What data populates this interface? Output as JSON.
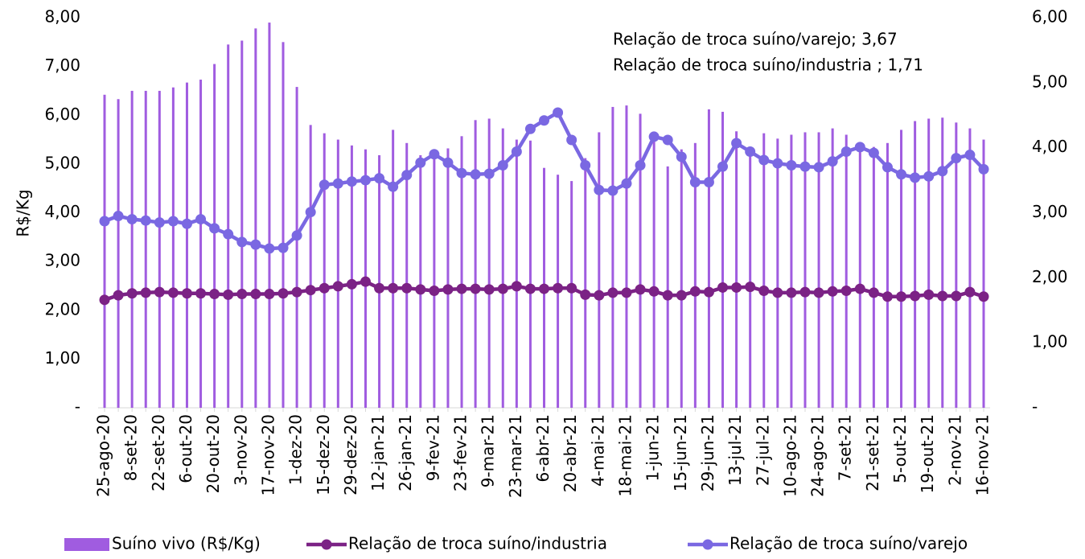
{
  "chart_data": {
    "type": "bar-line",
    "y_label": "R$/Kg",
    "annotations": [
      "Relação de troca suíno/varejo; 3,67",
      "Relação de troca suíno/industria ; 1,71"
    ],
    "categories": [
      "25-ago-20",
      null,
      "8-set-20",
      null,
      "22-set-20",
      null,
      "6-out-20",
      null,
      "20-out-20",
      null,
      "3-nov-20",
      null,
      "17-nov-20",
      null,
      "1-dez-20",
      null,
      "15-dez-20",
      null,
      "29-dez-20",
      null,
      "12-jan-21",
      null,
      "26-jan-21",
      null,
      "9-fev-21",
      null,
      "23-fev-21",
      null,
      "9-mar-21",
      null,
      "23-mar-21",
      null,
      "6-abr-21",
      null,
      "20-abr-21",
      null,
      "4-mai-21",
      null,
      "18-mai-21",
      null,
      "1-jun-21",
      null,
      "15-jun-21",
      null,
      "29-jun-21",
      null,
      "13-jul-21",
      null,
      "27-jul-21",
      null,
      "10-ago-21",
      null,
      "24-ago-21",
      null,
      "7-set-21",
      null,
      "21-set-21",
      null,
      "5-out-21",
      null,
      "19-out-21",
      null,
      "2-nov-21",
      null,
      "16-nov-21"
    ],
    "series": [
      {
        "name": "Suíno vivo (R$/Kg)",
        "kind": "bar",
        "color": "#a05ce0",
        "values": [
          6.42,
          6.33,
          6.5,
          6.5,
          6.5,
          6.57,
          6.67,
          6.73,
          7.05,
          7.45,
          7.53,
          7.78,
          7.9,
          7.5,
          6.58,
          5.8,
          5.63,
          5.5,
          5.38,
          5.3,
          5.18,
          5.7,
          5.43,
          5.18,
          5.15,
          5.32,
          5.57,
          5.9,
          5.93,
          5.73,
          5.5,
          5.48,
          4.92,
          4.78,
          4.65,
          5.12,
          5.65,
          6.17,
          6.2,
          6.03,
          5.55,
          4.95,
          5.3,
          5.43,
          6.12,
          6.07,
          5.67,
          5.18,
          5.63,
          5.52,
          5.6,
          5.65,
          5.65,
          5.73,
          5.6,
          5.4,
          5.35,
          5.43,
          5.7,
          5.88,
          5.93,
          5.95,
          5.85,
          5.73,
          5.5
        ]
      },
      {
        "name": "Relação de troca suíno/industria",
        "kind": "line",
        "axis": "y2",
        "color": "#7b2285",
        "values": [
          1.66,
          1.73,
          1.76,
          1.77,
          1.78,
          1.77,
          1.76,
          1.76,
          1.75,
          1.74,
          1.75,
          1.75,
          1.75,
          1.76,
          1.78,
          1.81,
          1.84,
          1.87,
          1.9,
          1.94,
          1.84,
          1.84,
          1.84,
          1.82,
          1.8,
          1.82,
          1.83,
          1.83,
          1.82,
          1.83,
          1.87,
          1.83,
          1.83,
          1.84,
          1.84,
          1.74,
          1.73,
          1.77,
          1.77,
          1.82,
          1.79,
          1.73,
          1.73,
          1.79,
          1.78,
          1.85,
          1.85,
          1.86,
          1.8,
          1.77,
          1.77,
          1.78,
          1.77,
          1.79,
          1.8,
          1.83,
          1.77,
          1.71,
          1.71,
          1.72,
          1.74,
          1.72,
          1.72,
          1.78,
          1.71
        ]
      },
      {
        "name": "Relação de troca suíno/varejo",
        "kind": "line",
        "axis": "y2",
        "color": "#7a68e2",
        "values": [
          2.87,
          2.95,
          2.9,
          2.88,
          2.85,
          2.87,
          2.83,
          2.9,
          2.76,
          2.67,
          2.55,
          2.51,
          2.45,
          2.46,
          2.65,
          3.01,
          3.43,
          3.45,
          3.48,
          3.5,
          3.53,
          3.4,
          3.58,
          3.77,
          3.9,
          3.77,
          3.61,
          3.59,
          3.6,
          3.73,
          3.94,
          4.29,
          4.42,
          4.54,
          4.12,
          3.73,
          3.35,
          3.34,
          3.45,
          3.73,
          4.17,
          4.12,
          3.86,
          3.47,
          3.47,
          3.71,
          4.07,
          3.94,
          3.81,
          3.76,
          3.73,
          3.71,
          3.7,
          3.79,
          3.94,
          4.01,
          3.92,
          3.7,
          3.59,
          3.54,
          3.56,
          3.64,
          3.84,
          3.89,
          3.67
        ]
      }
    ],
    "ylim": [
      0,
      8
    ],
    "yticks": [
      {
        "value": 0,
        "label": "-"
      },
      {
        "value": 1,
        "label": "1,00"
      },
      {
        "value": 2,
        "label": "2,00"
      },
      {
        "value": 3,
        "label": "3,00"
      },
      {
        "value": 4,
        "label": "4,00"
      },
      {
        "value": 5,
        "label": "5,00"
      },
      {
        "value": 6,
        "label": "6,00"
      },
      {
        "value": 7,
        "label": "7,00"
      },
      {
        "value": 8,
        "label": "8,00"
      }
    ],
    "y2lim": [
      0,
      6
    ],
    "y2ticks": [
      {
        "value": 0,
        "label": "-"
      },
      {
        "value": 1,
        "label": "1,00"
      },
      {
        "value": 2,
        "label": "2,00"
      },
      {
        "value": 3,
        "label": "3,00"
      },
      {
        "value": 4,
        "label": "4,00"
      },
      {
        "value": 5,
        "label": "5,00"
      },
      {
        "value": 6,
        "label": "6,00"
      }
    ],
    "legend": "bottom"
  }
}
